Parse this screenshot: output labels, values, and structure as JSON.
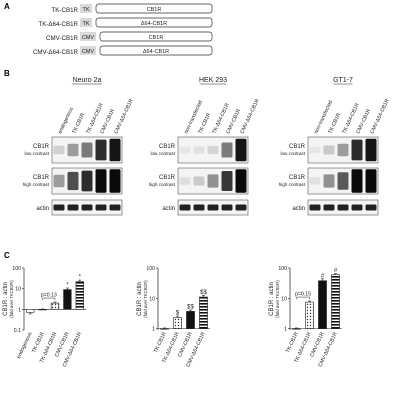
{
  "panels": {
    "a": {
      "letter": "A",
      "constructs": [
        {
          "name": "TK-CB1R",
          "promoter": "TK",
          "gene": "CB1R"
        },
        {
          "name": "TK-Δ64-CB1R",
          "promoter": "TK",
          "gene": "Δ64-CB1R"
        },
        {
          "name": "CMV-CB1R",
          "promoter": "CMV",
          "gene": "CB1R"
        },
        {
          "name": "CMV-Δ64-CB1R",
          "promoter": "CMV",
          "gene": "Δ64-CB1R"
        }
      ]
    },
    "b": {
      "letter": "B",
      "row_labels": {
        "cb1r": "CB1R",
        "low": "low contrast",
        "high": "high contrast",
        "actin": "actin"
      },
      "cells": [
        {
          "title": "Neuro 2a",
          "lanes": [
            "endogenous",
            "TK-CB1R",
            "TK-Δ64-CB1R",
            "CMV-CB1R",
            "CMV-Δ64-CB1R"
          ],
          "low": [
            0.12,
            0.35,
            0.5,
            0.85,
            0.95
          ],
          "high": [
            0.35,
            0.7,
            0.85,
            1.0,
            1.0
          ],
          "actin": [
            0.9,
            0.9,
            0.9,
            0.9,
            0.9
          ]
        },
        {
          "title": "HEK 293",
          "lanes": [
            "non-transfected",
            "TK-CB1R",
            "TK-Δ64-CB1R",
            "CMV-CB1R",
            "CMV-Δ64-CB1R"
          ],
          "low": [
            0.02,
            0.05,
            0.1,
            0.5,
            0.95
          ],
          "high": [
            0.06,
            0.15,
            0.4,
            0.8,
            1.0
          ],
          "actin": [
            0.9,
            0.9,
            0.9,
            0.9,
            0.9
          ]
        },
        {
          "title": "GT1-7",
          "lanes": [
            "non-transfected",
            "TK-CB1R",
            "TK-Δ64-CB1R",
            "CMV-CB1R",
            "CMV-Δ64-CB1R"
          ],
          "low": [
            0.02,
            0.15,
            0.35,
            0.85,
            0.95
          ],
          "high": [
            0.05,
            0.4,
            0.65,
            1.0,
            1.0
          ],
          "actin": [
            0.9,
            0.9,
            0.9,
            0.9,
            0.9
          ]
        }
      ]
    },
    "c": {
      "letter": "C",
      "ylabel": "CB1R : actin",
      "ylabel_sub": "(fold over TKCB1R)"
    }
  },
  "chart_data": [
    {
      "type": "bar",
      "categories": [
        "endogenous",
        "TK-CB1R",
        "TK-Δ64-CB1R",
        "CMV-CB1R",
        "CMV-Δ64-CB1R"
      ],
      "values": [
        0.72,
        1,
        2.0,
        9,
        22
      ],
      "errors": [
        0.12,
        0.04,
        0.25,
        1.8,
        4
      ],
      "patterns": [
        "white",
        "white",
        "dotted",
        "black",
        "striped"
      ],
      "yscale": "log",
      "ylim": [
        0.1,
        100
      ],
      "yticks": [
        0.1,
        1,
        10,
        100
      ],
      "annotations": [
        {
          "category_index": 2,
          "text": "p=0.13",
          "bracket_from": 1
        },
        {
          "category_index": 3,
          "text": "*"
        },
        {
          "category_index": 4,
          "text": "*"
        }
      ]
    },
    {
      "type": "bar",
      "categories": [
        "TK-CB1R",
        "TK-Δ64-CB1R",
        "CMV-CB1R",
        "CMV-Δ64-CB1R"
      ],
      "values": [
        1,
        2.3,
        3.7,
        11
      ],
      "errors": [
        0.05,
        0.3,
        0.4,
        1.5
      ],
      "patterns": [
        "white",
        "dotted",
        "black",
        "striped"
      ],
      "yscale": "log",
      "ylim": [
        0.9,
        100
      ],
      "yticks": [
        1,
        10,
        100
      ],
      "annotations": [
        {
          "category_index": 1,
          "text": "$"
        },
        {
          "category_index": 2,
          "text": "$$"
        },
        {
          "category_index": 3,
          "text": "$$"
        }
      ]
    },
    {
      "type": "bar",
      "categories": [
        "TK-CB1R",
        "TK-Δ64-CB1R",
        "CMV-CB1R",
        "CMV-Δ64-CB1R"
      ],
      "values": [
        1,
        7.5,
        38,
        60
      ],
      "errors": [
        0.05,
        0.6,
        6,
        5
      ],
      "patterns": [
        "white",
        "dotted",
        "black",
        "striped"
      ],
      "yscale": "log",
      "ylim": [
        0.9,
        100
      ],
      "yticks": [
        1,
        10,
        100
      ],
      "annotations": [
        {
          "category_index": 1,
          "text": "p=0.15",
          "bracket_from": 0
        },
        {
          "category_index": 2,
          "text": "#"
        },
        {
          "category_index": 3,
          "text": "#"
        }
      ]
    }
  ]
}
